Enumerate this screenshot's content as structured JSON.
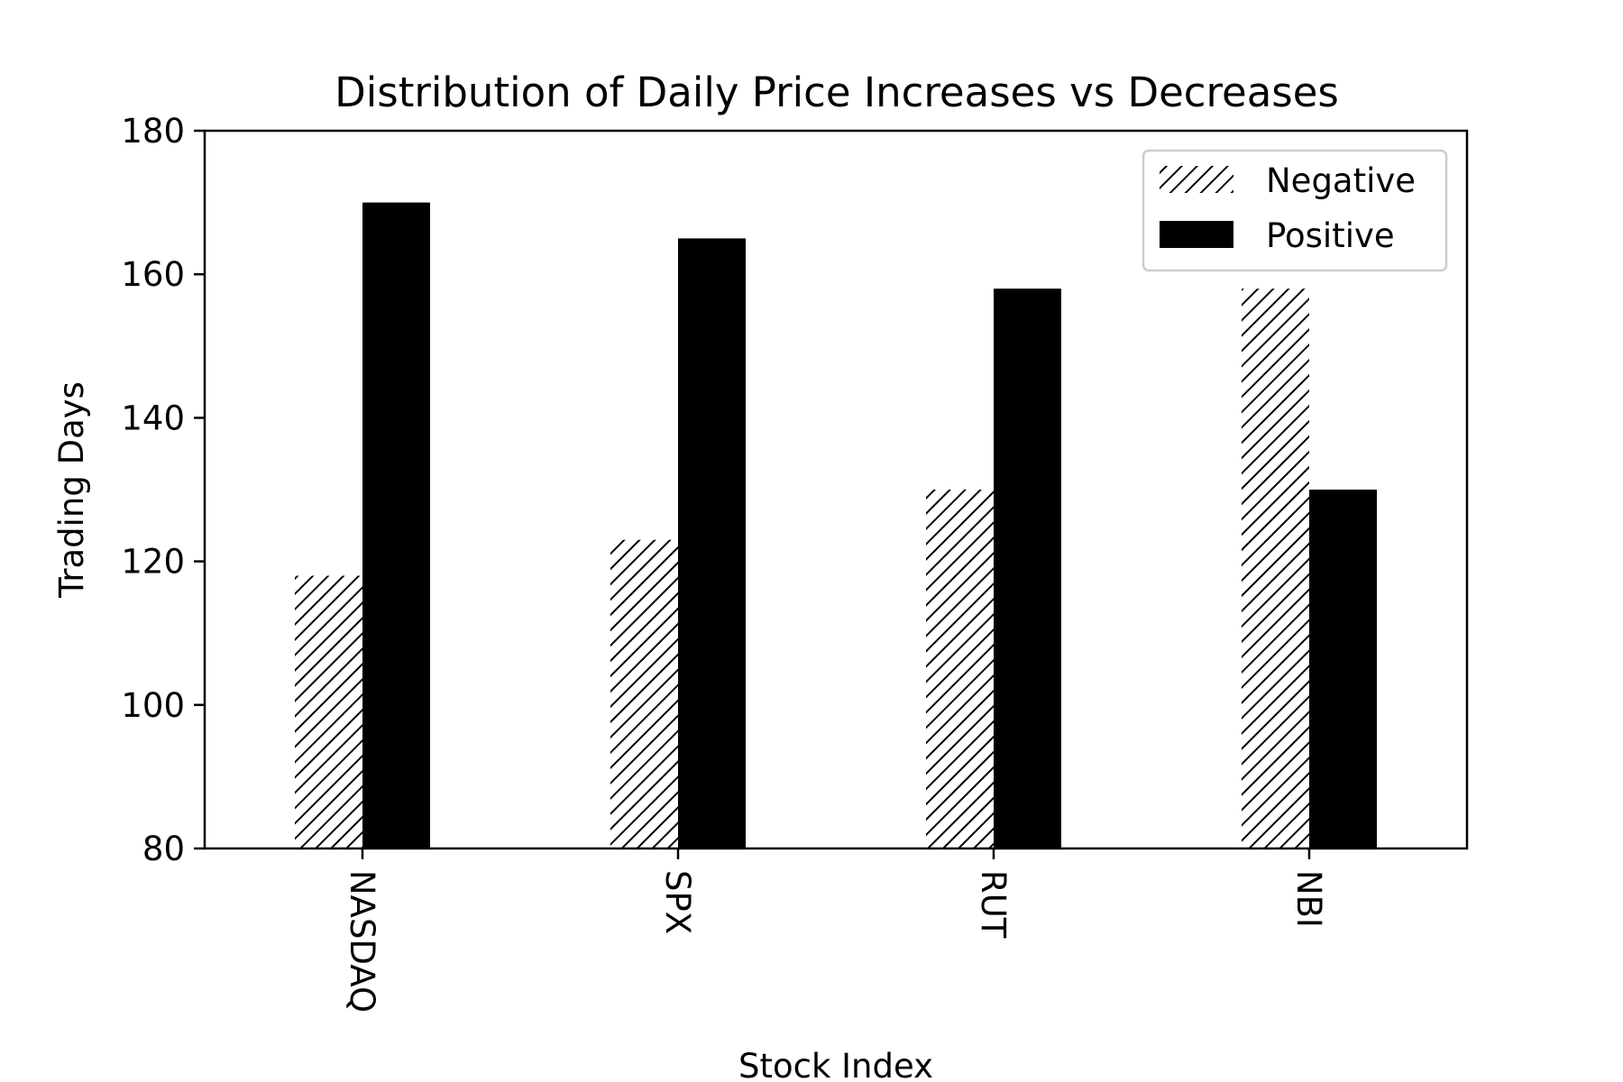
{
  "chart_data": {
    "type": "bar",
    "title": "Distribution of Daily Price Increases vs Decreases",
    "xlabel": "Stock Index",
    "ylabel": "Trading Days",
    "categories": [
      "NASDAQ",
      "SPX",
      "RUT",
      "NBI"
    ],
    "series": [
      {
        "name": "Negative",
        "values": [
          118,
          123,
          130,
          158
        ],
        "pattern": "hatch",
        "color": "#000000"
      },
      {
        "name": "Positive",
        "values": [
          170,
          165,
          158,
          130
        ],
        "pattern": "solid",
        "color": "#000000"
      }
    ],
    "ylim": [
      80,
      180
    ],
    "yticks": [
      80,
      100,
      120,
      140,
      160,
      180
    ],
    "xtick_rotation": "vertical",
    "grid": false,
    "legend_position": "top-right"
  }
}
